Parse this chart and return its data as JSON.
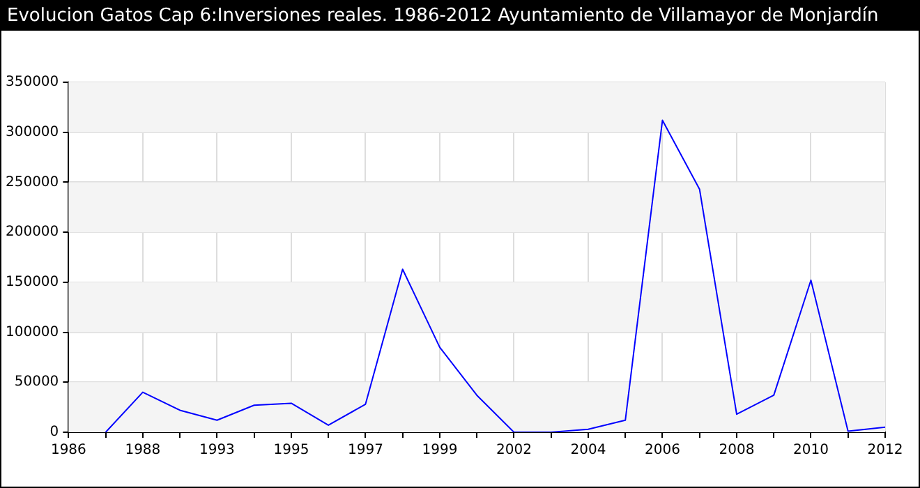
{
  "chart_data": {
    "type": "line",
    "title": "Evolucion Gatos Cap 6:Inversiones reales. 1986-2012 Ayuntamiento de Villamayor de Monjardín",
    "categories": [
      "1986",
      null,
      "1988",
      null,
      "1993",
      null,
      "1995",
      null,
      "1997",
      null,
      "1999",
      null,
      "2002",
      null,
      "2004",
      null,
      "2006",
      null,
      "2008",
      null,
      "2010",
      null,
      "2012"
    ],
    "series": [
      {
        "color": "#0000ff",
        "values": [
          null,
          0,
          40000,
          22000,
          12000,
          27000,
          29000,
          7000,
          28000,
          163000,
          85000,
          37000,
          0,
          0,
          3000,
          12000,
          312000,
          243000,
          18000,
          37000,
          152000,
          1000,
          5000
        ]
      }
    ],
    "ylim": [
      0,
      350000
    ],
    "yticks": [
      0,
      50000,
      100000,
      150000,
      200000,
      250000,
      300000,
      350000
    ],
    "grid": true,
    "marker": "none",
    "line_style": "solid"
  }
}
